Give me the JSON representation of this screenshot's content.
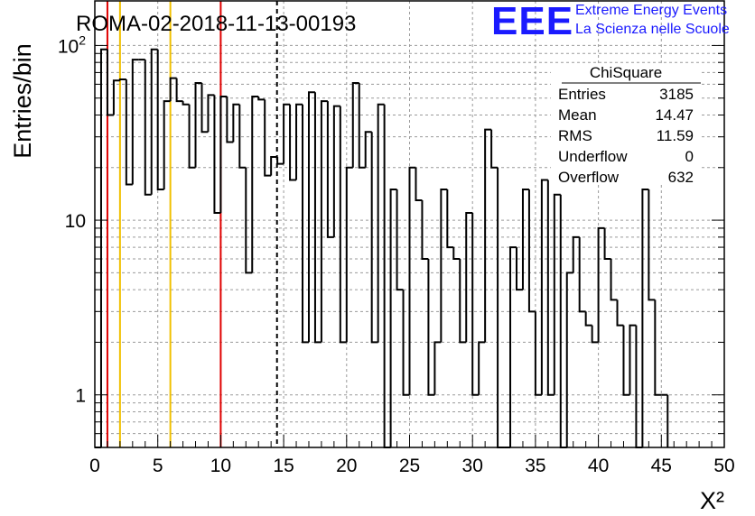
{
  "header": {
    "run_title": "ROMA-02-2018-11-13-00193",
    "logo_text": "EEE",
    "logo_line1": "Extreme Energy Events",
    "logo_line2": "La Scienza nelle Scuole",
    "logo_color": "#1a1aff"
  },
  "stats_box": {
    "title": "ChiSquare",
    "rows": [
      {
        "label": "Entries",
        "value": "3185"
      },
      {
        "label": "Mean",
        "value": "14.47"
      },
      {
        "label": "RMS",
        "value": "11.59"
      },
      {
        "label": "Underflow",
        "value": "0"
      },
      {
        "label": "Overflow",
        "value": "632"
      }
    ]
  },
  "chart_data": {
    "type": "histogram",
    "title": "ROMA-02-2018-11-13-00193",
    "xlabel": "X²",
    "ylabel": "Entries/bin",
    "xlim": [
      0,
      50
    ],
    "ylim": [
      0.5,
      180
    ],
    "y_scale": "log",
    "grid": true,
    "x_ticks": [
      "0",
      "5",
      "10",
      "15",
      "20",
      "25",
      "30",
      "35",
      "40",
      "45",
      "50"
    ],
    "y_ticks": [
      "1",
      "10",
      "10²"
    ],
    "bin_width": 0.5,
    "bin_contents": [
      0,
      95,
      40,
      63,
      64,
      16,
      83,
      83,
      14,
      95,
      15,
      48,
      65,
      48,
      46,
      20,
      61,
      32,
      52,
      11,
      51,
      28,
      46,
      20,
      5,
      51,
      49,
      18,
      23,
      21,
      46,
      17,
      46,
      2,
      54,
      2,
      48,
      8,
      45,
      2,
      20,
      61,
      20,
      32,
      2,
      46,
      0,
      15,
      4,
      1,
      20,
      13,
      6,
      1,
      2,
      15,
      7,
      6,
      2,
      11,
      1,
      2,
      33,
      20,
      0,
      0,
      7,
      4,
      15,
      3,
      1,
      17,
      1,
      14,
      0.25,
      5,
      8,
      3,
      2.5,
      2,
      9,
      6,
      3.5,
      2.5,
      1,
      2.5,
      0.25,
      15,
      3.5,
      1,
      1
    ],
    "vertical_lines": [
      {
        "x": 1,
        "color": "#e00000",
        "style": "solid"
      },
      {
        "x": 2,
        "color": "#f0c000",
        "style": "solid"
      },
      {
        "x": 6,
        "color": "#f0c000",
        "style": "solid"
      },
      {
        "x": 10,
        "color": "#e00000",
        "style": "solid"
      },
      {
        "x": 14.47,
        "color": "#000000",
        "style": "dashed"
      }
    ]
  }
}
